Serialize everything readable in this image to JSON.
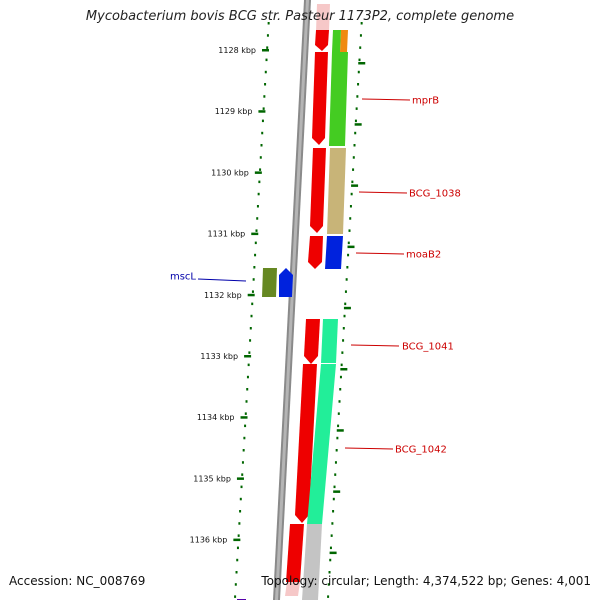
{
  "title": "Mycobacterium bovis BCG str. Pasteur 1173P2, complete genome",
  "accession_text": "Accession: NC_008769",
  "summary_text": "Topology: circular; Length: 4,374,522 bp; Genes: 4,001",
  "genome": {
    "accession": "NC_008769",
    "topology": "circular",
    "length_bp": 4374522,
    "gene_count": 4001
  },
  "ruler": {
    "unit": "kbp",
    "ticks": [
      {
        "value": 1128,
        "label": "1128 kbp"
      },
      {
        "value": 1129,
        "label": "1129 kbp"
      },
      {
        "value": 1130,
        "label": "1130 kbp"
      },
      {
        "value": 1131,
        "label": "1131 kbp"
      },
      {
        "value": 1132,
        "label": "1132 kbp"
      },
      {
        "value": 1133,
        "label": "1133 kbp"
      },
      {
        "value": 1134,
        "label": "1134 kbp"
      },
      {
        "value": 1135,
        "label": "1135 kbp"
      },
      {
        "value": 1136,
        "label": "1136 kbp"
      }
    ]
  },
  "gene_labels": [
    {
      "name": "mprB",
      "color": "#cc0000",
      "side": "right"
    },
    {
      "name": "BCG_1038",
      "color": "#cc0000",
      "side": "right"
    },
    {
      "name": "moaB2",
      "color": "#cc0000",
      "side": "right"
    },
    {
      "name": "mscL",
      "color": "#0000aa",
      "side": "left"
    },
    {
      "name": "BCG_1041",
      "color": "#cc0000",
      "side": "right"
    },
    {
      "name": "BCG_1042",
      "color": "#cc0000",
      "side": "right"
    }
  ],
  "colors": {
    "forward_cds": "#ee0000",
    "mprB_feature": "#44cc22",
    "BCG_1038_feature": "#c8b478",
    "moaB2_feature": "#0022dd",
    "mscL_feature": "#668822",
    "BCG_1042_feature": "#22ee99",
    "ruler": "#006600",
    "backbone": "#808080"
  }
}
